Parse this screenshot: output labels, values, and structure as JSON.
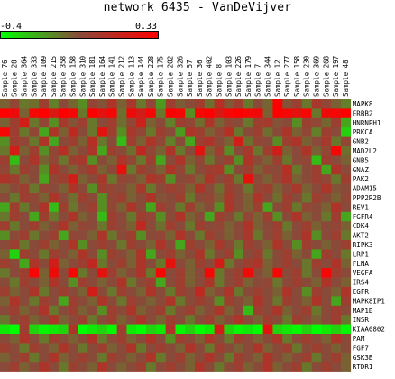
{
  "chart_data": {
    "type": "heatmap",
    "title": "network 6435 - VanDeVijver",
    "scale": {
      "min_label": "-0.4",
      "max_label": "0.33",
      "min": -0.4,
      "max": 0.33,
      "low_color": "#00ff00",
      "mid_color": "#8a4a3a",
      "high_color": "#ff0000"
    },
    "columns": [
      "Sample 76",
      "Sample 28",
      "Sample 364",
      "Sample 333",
      "Sample 109",
      "Sample 215",
      "Sample 358",
      "Sample 158",
      "Sample 310",
      "Sample 181",
      "Sample 164",
      "Sample 141",
      "Sample 212",
      "Sample 113",
      "Sample 144",
      "Sample 228",
      "Sample 175",
      "Sample 202",
      "Sample 326",
      "Sample 57",
      "Sample 36",
      "Sample 402",
      "Sample 8",
      "Sample 103",
      "Sample 226",
      "Sample 179",
      "Sample 7",
      "Sample 344",
      "Sample 12",
      "Sample 277",
      "Sample 158",
      "Sample 230",
      "Sample 369",
      "Sample 268",
      "Sample 197",
      "Sample 48"
    ],
    "rows": [
      "MAPK8",
      "ERBB2",
      "HNRNPH1",
      "PRKCA",
      "GNB2",
      "MAD2L2",
      "GNB5",
      "GNAZ",
      "PAK2",
      "ADAM15",
      "PPP2R2B",
      "REV1",
      "FGFR4",
      "CDK4",
      "AKT2",
      "RIPK3",
      "LRP1",
      "FLNA",
      "VEGFA",
      "IRS4",
      "EGFR",
      "MAPK8IP1",
      "MAP1B",
      "INSR",
      "KIAA0802",
      "PAM",
      "FGF7",
      "GSK3B",
      "RTDR1"
    ],
    "values": [
      [
        -0.05,
        0.02,
        -0.1,
        -0.08,
        0.05,
        -0.12,
        0.0,
        -0.06,
        -0.15,
        0.03,
        -0.02,
        0.1,
        -0.05,
        0.08,
        -0.1,
        0.02,
        -0.18,
        0.05,
        -0.04,
        0.0,
        0.06,
        -0.08,
        0.12,
        -0.03,
        0.05,
        -0.1,
        0.0,
        -0.06,
        0.33,
        -0.02,
        0.04,
        -0.1,
        0.08,
        0.02,
        -0.05,
        -0.12
      ],
      [
        0.33,
        0.28,
        -0.05,
        0.3,
        0.33,
        0.22,
        0.33,
        0.3,
        -0.1,
        0.33,
        0.25,
        0.3,
        -0.08,
        0.28,
        0.2,
        0.3,
        -0.1,
        0.32,
        0.3,
        -0.15,
        0.3,
        0.33,
        0.22,
        0.3,
        0.33,
        0.3,
        0.28,
        -0.05,
        0.33,
        0.3,
        0.25,
        0.3,
        -0.1,
        0.28,
        0.3,
        0.33
      ],
      [
        -0.05,
        0.05,
        0.2,
        -0.1,
        0.02,
        -0.15,
        0.08,
        -0.02,
        0.05,
        -0.1,
        0.0,
        0.06,
        -0.08,
        0.02,
        0.18,
        -0.05,
        0.0,
        -0.12,
        0.05,
        0.02,
        -0.08,
        0.1,
        -0.05,
        0.02,
        0.0,
        -0.1,
        0.05,
        0.08,
        -0.02,
        0.0,
        -0.15,
        0.04,
        0.02,
        -0.06,
        0.05,
        -0.2
      ],
      [
        0.3,
        0.05,
        -0.1,
        0.02,
        -0.2,
        0.1,
        -0.05,
        0.15,
        0.0,
        -0.1,
        0.25,
        0.05,
        -0.15,
        0.08,
        0.02,
        -0.1,
        0.05,
        0.0,
        -0.18,
        0.1,
        0.05,
        -0.05,
        0.02,
        0.12,
        -0.1,
        0.0,
        0.05,
        -0.08,
        0.0,
        0.1,
        -0.05,
        0.02,
        -0.12,
        0.05,
        0.0,
        -0.3
      ],
      [
        -0.15,
        0.05,
        0.02,
        -0.1,
        0.1,
        -0.2,
        0.0,
        0.05,
        -0.05,
        0.12,
        -0.1,
        0.0,
        -0.25,
        0.05,
        -0.05,
        0.1,
        0.02,
        -0.12,
        0.0,
        -0.2,
        0.05,
        0.1,
        0.0,
        -0.05,
        0.2,
        -0.08,
        0.02,
        0.0,
        -0.15,
        0.05,
        0.1,
        -0.05,
        0.0,
        0.08,
        -0.1,
        0.02
      ],
      [
        -0.1,
        0.2,
        -0.05,
        0.05,
        -0.15,
        0.02,
        0.12,
        -0.05,
        0.0,
        0.1,
        -0.2,
        0.05,
        0.0,
        -0.08,
        0.15,
        0.02,
        -0.05,
        0.1,
        -0.1,
        0.0,
        0.25,
        -0.05,
        0.05,
        -0.15,
        0.0,
        0.08,
        -0.1,
        0.05,
        0.2,
        -0.05,
        0.0,
        0.1,
        -0.05,
        0.02,
        0.3,
        -0.08
      ],
      [
        0.05,
        -0.25,
        0.0,
        0.1,
        -0.05,
        0.02,
        -0.1,
        0.05,
        0.08,
        -0.15,
        0.0,
        -0.05,
        0.1,
        0.02,
        -0.1,
        0.05,
        -0.2,
        0.0,
        0.1,
        -0.05,
        0.02,
        -0.1,
        0.0,
        0.05,
        -0.15,
        0.1,
        0.0,
        -0.05,
        0.05,
        -0.1,
        0.0,
        0.02,
        -0.25,
        0.05,
        0.0,
        -0.05
      ],
      [
        0.02,
        -0.1,
        0.05,
        0.0,
        -0.15,
        0.1,
        0.0,
        -0.05,
        0.02,
        0.08,
        -0.05,
        0.0,
        0.25,
        -0.1,
        0.05,
        0.0,
        -0.05,
        0.1,
        0.02,
        -0.1,
        0.0,
        0.05,
        0.08,
        -0.15,
        0.0,
        0.05,
        -0.05,
        0.02,
        0.0,
        0.12,
        -0.1,
        0.0,
        0.05,
        -0.2,
        0.1,
        0.0
      ],
      [
        0.1,
        0.05,
        -0.05,
        0.0,
        -0.2,
        0.02,
        0.05,
        0.2,
        -0.05,
        0.0,
        0.08,
        -0.1,
        0.02,
        0.0,
        -0.05,
        0.1,
        0.05,
        -0.15,
        0.0,
        0.02,
        -0.05,
        0.1,
        0.0,
        0.05,
        -0.1,
        0.25,
        0.0,
        -0.05,
        0.02,
        0.1,
        -0.05,
        0.0,
        0.05,
        0.02,
        -0.1,
        0.05
      ],
      [
        -0.05,
        0.0,
        0.05,
        -0.1,
        0.02,
        0.0,
        -0.05,
        0.1,
        0.0,
        -0.15,
        0.05,
        0.02,
        0.0,
        -0.05,
        0.08,
        -0.1,
        0.0,
        0.05,
        0.02,
        -0.05,
        0.1,
        0.0,
        -0.08,
        0.05,
        0.0,
        -0.1,
        0.02,
        0.05,
        -0.05,
        0.0,
        0.08,
        -0.05,
        0.0,
        0.1,
        -0.02,
        0.0
      ],
      [
        0.0,
        -0.1,
        0.05,
        0.02,
        -0.05,
        0.1,
        0.0,
        -0.08,
        0.05,
        0.0,
        -0.15,
        0.02,
        0.05,
        -0.05,
        0.0,
        0.1,
        -0.02,
        0.0,
        0.05,
        -0.1,
        0.0,
        0.02,
        -0.05,
        0.08,
        0.0,
        -0.05,
        0.1,
        0.0,
        -0.08,
        0.05,
        0.0,
        -0.1,
        0.05,
        0.0,
        -0.05,
        0.02
      ],
      [
        -0.2,
        0.05,
        -0.1,
        0.0,
        0.1,
        -0.25,
        0.05,
        -0.1,
        0.0,
        0.05,
        -0.15,
        0.02,
        -0.05,
        0.1,
        0.0,
        -0.2,
        0.05,
        0.0,
        -0.1,
        0.05,
        -0.05,
        0.0,
        -0.15,
        0.1,
        0.0,
        -0.05,
        0.05,
        -0.2,
        0.0,
        0.05,
        -0.1,
        0.02,
        0.0,
        -0.05,
        0.1,
        0.0
      ],
      [
        -0.1,
        0.05,
        0.0,
        -0.2,
        0.05,
        -0.1,
        0.0,
        0.1,
        -0.05,
        0.0,
        -0.25,
        0.05,
        0.0,
        -0.1,
        0.05,
        0.02,
        -0.15,
        0.0,
        0.1,
        -0.05,
        0.0,
        -0.2,
        0.05,
        0.0,
        -0.1,
        0.02,
        -0.05,
        0.05,
        -0.15,
        0.0,
        0.1,
        -0.05,
        0.0,
        -0.1,
        0.05,
        -0.2
      ],
      [
        0.05,
        -0.1,
        0.0,
        0.05,
        -0.05,
        0.0,
        0.1,
        -0.05,
        0.02,
        0.0,
        -0.1,
        0.05,
        0.0,
        -0.05,
        0.15,
        0.0,
        -0.08,
        0.05,
        0.0,
        -0.1,
        0.05,
        0.0,
        0.02,
        -0.05,
        0.0,
        0.1,
        -0.05,
        0.0,
        0.05,
        -0.1,
        0.0,
        0.05,
        -0.05,
        0.0,
        0.02,
        -0.05
      ],
      [
        -0.15,
        0.0,
        0.05,
        -0.1,
        0.0,
        0.05,
        -0.2,
        0.02,
        0.0,
        -0.05,
        0.1,
        -0.1,
        0.0,
        0.05,
        -0.15,
        0.0,
        0.02,
        -0.05,
        0.1,
        0.0,
        -0.1,
        0.05,
        0.0,
        -0.05,
        0.0,
        0.08,
        -0.1,
        0.0,
        0.05,
        -0.05,
        0.0,
        0.1,
        -0.15,
        0.0,
        0.05,
        -0.1
      ],
      [
        0.0,
        0.05,
        -0.1,
        0.0,
        0.05,
        -0.05,
        0.0,
        0.1,
        -0.15,
        0.0,
        0.05,
        0.0,
        -0.1,
        0.05,
        0.0,
        -0.05,
        0.1,
        0.0,
        -0.2,
        0.05,
        0.0,
        -0.05,
        0.08,
        0.0,
        -0.1,
        0.05,
        0.0,
        -0.05,
        0.1,
        0.0,
        -0.15,
        0.05,
        0.0,
        -0.05,
        0.0,
        0.05
      ],
      [
        -0.05,
        -0.3,
        0.05,
        0.0,
        -0.1,
        0.05,
        0.0,
        -0.05,
        0.1,
        0.0,
        -0.15,
        0.05,
        0.0,
        -0.05,
        0.1,
        -0.2,
        0.0,
        0.05,
        -0.05,
        0.0,
        0.1,
        -0.1,
        0.0,
        0.05,
        -0.15,
        0.0,
        0.05,
        -0.1,
        0.0,
        0.05,
        -0.05,
        0.0,
        -0.2,
        0.05,
        0.0,
        -0.1
      ],
      [
        0.05,
        0.0,
        -0.2,
        0.1,
        0.0,
        0.2,
        -0.05,
        0.0,
        0.05,
        0.15,
        -0.1,
        0.0,
        0.05,
        -0.05,
        0.1,
        0.0,
        -0.1,
        0.25,
        0.0,
        -0.05,
        0.05,
        0.0,
        0.2,
        -0.1,
        0.0,
        0.05,
        0.1,
        -0.05,
        0.0,
        0.05,
        0.0,
        -0.1,
        0.05,
        0.0,
        0.1,
        -0.05
      ],
      [
        -0.1,
        0.0,
        0.05,
        0.3,
        -0.05,
        0.28,
        0.0,
        0.3,
        -0.1,
        0.0,
        0.25,
        0.05,
        -0.05,
        0.0,
        0.1,
        -0.1,
        0.3,
        0.0,
        0.05,
        -0.05,
        0.0,
        0.3,
        -0.1,
        0.0,
        0.05,
        0.28,
        0.0,
        -0.05,
        0.3,
        0.0,
        0.05,
        -0.1,
        0.0,
        0.3,
        0.05,
        0.0
      ],
      [
        0.0,
        -0.1,
        0.05,
        0.0,
        -0.05,
        0.1,
        0.0,
        -0.15,
        0.05,
        0.0,
        -0.05,
        0.0,
        0.1,
        -0.1,
        0.0,
        0.05,
        -0.2,
        0.0,
        0.05,
        -0.05,
        0.0,
        0.1,
        -0.1,
        0.0,
        0.05,
        -0.05,
        0.0,
        0.02,
        -0.1,
        0.0,
        0.05,
        0.0,
        -0.05,
        0.1,
        0.0,
        -0.05
      ],
      [
        0.05,
        -0.05,
        0.0,
        0.1,
        -0.1,
        0.0,
        0.05,
        0.0,
        -0.05,
        0.2,
        0.0,
        -0.1,
        0.05,
        0.0,
        -0.05,
        0.1,
        0.0,
        -0.1,
        0.05,
        0.0,
        0.15,
        -0.05,
        0.0,
        0.1,
        -0.1,
        0.0,
        0.05,
        0.0,
        -0.05,
        0.1,
        0.0,
        -0.15,
        0.05,
        0.0,
        -0.05,
        0.1
      ],
      [
        -0.05,
        0.1,
        0.0,
        -0.1,
        0.05,
        0.0,
        -0.2,
        0.05,
        0.0,
        -0.05,
        0.1,
        0.0,
        -0.1,
        0.05,
        0.0,
        -0.05,
        0.0,
        0.1,
        -0.1,
        0.0,
        0.05,
        0.0,
        -0.15,
        0.05,
        0.0,
        -0.05,
        0.1,
        0.0,
        -0.1,
        0.05,
        0.0,
        -0.05,
        0.1,
        0.0,
        -0.2,
        0.05
      ],
      [
        0.0,
        0.05,
        -0.05,
        0.0,
        0.1,
        -0.1,
        0.0,
        0.05,
        -0.05,
        0.0,
        -0.15,
        0.05,
        0.0,
        0.1,
        -0.05,
        0.0,
        0.05,
        -0.1,
        0.0,
        0.05,
        -0.05,
        0.0,
        0.1,
        -0.05,
        0.0,
        -0.25,
        0.05,
        0.0,
        0.1,
        -0.05,
        0.0,
        0.05,
        -0.1,
        0.0,
        0.05,
        0.0
      ],
      [
        -0.1,
        0.0,
        0.05,
        -0.05,
        0.0,
        0.1,
        -0.05,
        0.0,
        0.05,
        -0.1,
        0.0,
        0.05,
        -0.05,
        0.0,
        0.1,
        0.0,
        -0.05,
        0.05,
        0.0,
        -0.1,
        0.0,
        0.05,
        -0.05,
        0.0,
        0.1,
        0.0,
        -0.05,
        0.05,
        0.0,
        -0.1,
        0.05,
        0.0,
        -0.05,
        0.0,
        0.05,
        -0.1
      ],
      [
        -0.35,
        -0.4,
        0.05,
        -0.3,
        -0.38,
        -0.35,
        -0.3,
        0.1,
        -0.4,
        -0.35,
        -0.3,
        -0.38,
        0.05,
        -0.35,
        -0.4,
        -0.3,
        -0.35,
        0.1,
        -0.38,
        -0.3,
        -0.4,
        -0.35,
        0.2,
        -0.3,
        -0.38,
        -0.35,
        -0.4,
        0.25,
        -0.3,
        -0.35,
        -0.38,
        -0.3,
        -0.4,
        -0.35,
        -0.3,
        -0.38
      ],
      [
        0.0,
        -0.05,
        0.1,
        0.0,
        -0.1,
        0.05,
        0.0,
        -0.05,
        0.0,
        0.1,
        -0.1,
        0.0,
        0.05,
        -0.05,
        0.0,
        0.1,
        0.0,
        -0.15,
        0.05,
        0.0,
        -0.05,
        0.1,
        0.0,
        -0.1,
        0.05,
        0.0,
        -0.05,
        0.0,
        0.1,
        -0.1,
        0.0,
        0.05,
        0.0,
        -0.05,
        0.1,
        0.0
      ],
      [
        0.05,
        0.0,
        -0.1,
        0.05,
        0.0,
        -0.05,
        0.1,
        0.0,
        -0.1,
        0.0,
        0.05,
        -0.05,
        0.0,
        0.1,
        -0.1,
        0.0,
        0.05,
        0.0,
        -0.05,
        0.1,
        0.0,
        -0.1,
        0.05,
        0.0,
        -0.05,
        0.0,
        0.1,
        -0.05,
        0.0,
        0.05,
        -0.1,
        0.0,
        0.05,
        0.0,
        -0.05,
        0.0
      ],
      [
        -0.05,
        0.0,
        0.05,
        -0.1,
        0.0,
        0.1,
        -0.05,
        0.0,
        0.05,
        0.0,
        -0.1,
        0.05,
        0.0,
        -0.05,
        0.0,
        0.1,
        -0.1,
        0.0,
        0.05,
        -0.05,
        0.0,
        0.1,
        0.0,
        -0.1,
        0.05,
        0.0,
        -0.05,
        0.1,
        0.0,
        -0.05,
        0.0,
        0.05,
        -0.1,
        0.0,
        0.05,
        -0.05
      ],
      [
        0.0,
        0.05,
        -0.05,
        0.0,
        0.1,
        0.0,
        -0.1,
        0.05,
        0.0,
        -0.05,
        0.1,
        0.0,
        -0.05,
        0.0,
        0.05,
        -0.1,
        0.0,
        0.05,
        0.0,
        -0.05,
        0.1,
        0.0,
        -0.1,
        0.0,
        0.05,
        -0.05,
        0.0,
        0.1,
        -0.05,
        0.0,
        0.05,
        -0.1,
        0.0,
        0.05,
        0.0,
        -0.05
      ]
    ]
  }
}
